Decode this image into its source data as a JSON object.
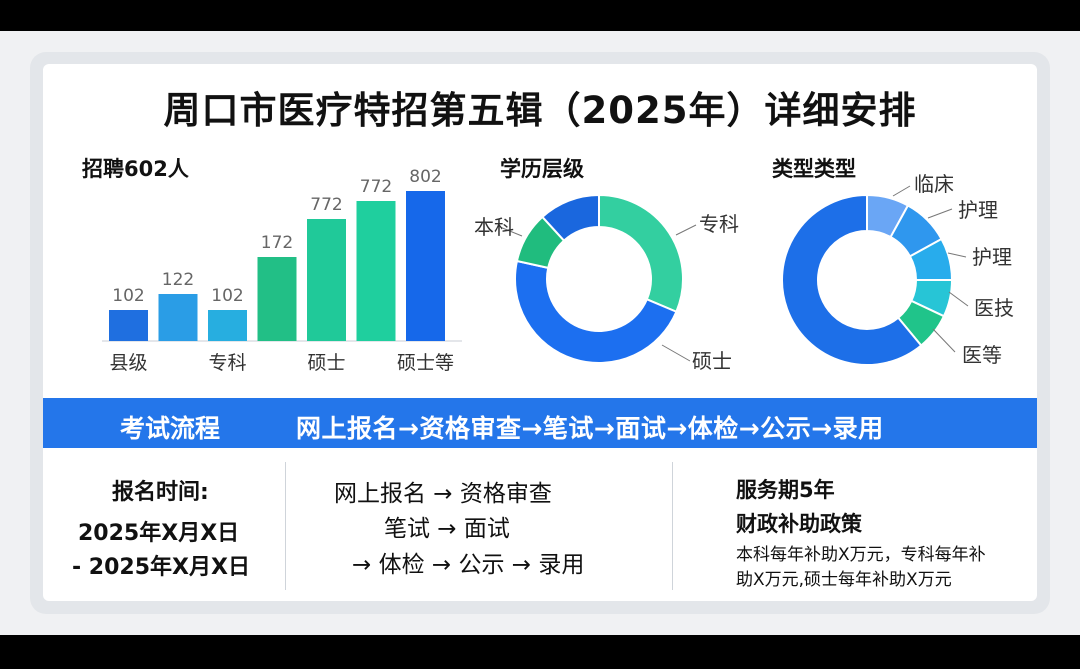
{
  "title": "周口市医疗特招第五辑（2025年）详细安排",
  "charts": {
    "bar_title": "招聘602人",
    "edu_title": "学历层级",
    "type_title": "类型类型"
  },
  "chart_data": [
    {
      "type": "bar",
      "title": "招聘602人",
      "categories": [
        "县级",
        "",
        "专科",
        "",
        "硕士",
        "",
        "硕士等"
      ],
      "values": [
        102,
        122,
        102,
        172,
        772,
        772,
        802
      ],
      "colors": [
        "#1f6fe0",
        "#2a9de6",
        "#27aee0",
        "#22bf86",
        "#20c999",
        "#1fcf9e",
        "#1668ea"
      ],
      "ylim": [
        0,
        802
      ]
    },
    {
      "type": "pie",
      "title": "学历层级",
      "labels": [
        "专科",
        "硕士",
        "本科"
      ],
      "values": [
        32,
        48,
        20
      ],
      "lead_offset": 12,
      "colors": [
        "#33cfa0",
        "#1c6ff0",
        "#20bc7e"
      ],
      "dark_segment": {
        "color": "#1a67de",
        "value": 12
      }
    },
    {
      "type": "pie",
      "title": "类型类型",
      "labels": [
        "临床",
        "护理",
        "护理",
        "医技",
        "医等"
      ],
      "values": [
        8,
        9,
        8,
        7,
        7
      ],
      "remainder": 61,
      "colors": [
        "#6aa6f5",
        "#2f97ee",
        "#28acec",
        "#27c5d6",
        "#20c48a"
      ],
      "remainder_color": "#1d6fe8"
    }
  ],
  "process": {
    "label": "考试流程",
    "flow": "网上报名→资格审查→笔试→面试→体检→公示→录用"
  },
  "registration": {
    "heading": "报名时间:",
    "line1": "2025年X月X日",
    "line2": "- 2025年X月X日"
  },
  "flow_detail": {
    "line1": "网上报名 → 资格审查",
    "line2": "笔试 → 面试",
    "line3": "→ 体检 → 公示 → 录用"
  },
  "service": {
    "heading": "服务期5年",
    "subheading": "财政补助政策",
    "line1": "本科每年补助X万元，专科每年补",
    "line2": "助X万元,硕士每年补助X万元"
  },
  "colors": {
    "band": "#2476ea",
    "background": "#000000"
  }
}
